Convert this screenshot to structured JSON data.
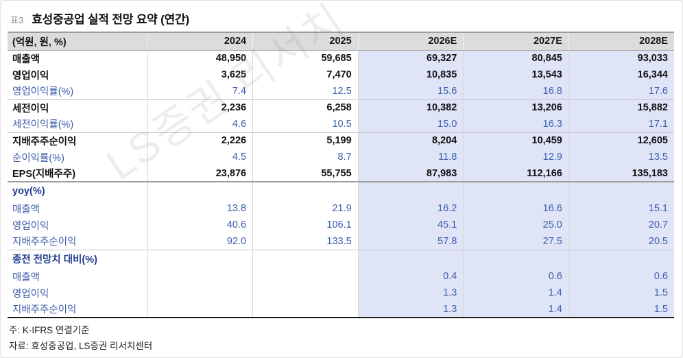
{
  "page": {
    "table_tag": "표3",
    "title": "효성중공업 실적 전망 요약 (연간)",
    "watermark": "LS증권 리서치",
    "notes": [
      "주: K-IFRS 연결기준",
      "자료: 효성중공업, LS증권 리서치센터"
    ]
  },
  "colors": {
    "header_bg": "#dcdcdc",
    "estimate_bg": "#dfe5f7",
    "blue_text": "#3d5caa",
    "section_text": "#1f3d8f"
  },
  "table": {
    "unit_header": "(억원, 원, %)",
    "columns": [
      "2024",
      "2025",
      "2026E",
      "2027E",
      "2028E"
    ],
    "estimate_start": 2,
    "rows": [
      {
        "label": "매출액",
        "style": "bold",
        "values": [
          "48,950",
          "59,685",
          "69,327",
          "80,845",
          "93,033"
        ]
      },
      {
        "label": "영업이익",
        "style": "bold",
        "values": [
          "3,625",
          "7,470",
          "10,835",
          "13,543",
          "16,344"
        ]
      },
      {
        "label": "영업이익률(%)",
        "style": "ratio",
        "values": [
          "7.4",
          "12.5",
          "15.6",
          "16.8",
          "17.6"
        ]
      },
      {
        "label": "세전이익",
        "style": "bold",
        "border": "thin",
        "values": [
          "2,236",
          "6,258",
          "10,382",
          "13,206",
          "15,882"
        ]
      },
      {
        "label": "세전이익률(%)",
        "style": "ratio",
        "values": [
          "4.6",
          "10.5",
          "15.0",
          "16.3",
          "17.1"
        ]
      },
      {
        "label": "지배주주순이익",
        "style": "bold",
        "border": "thin",
        "values": [
          "2,226",
          "5,199",
          "8,204",
          "10,459",
          "12,605"
        ]
      },
      {
        "label": "순이익률(%)",
        "style": "ratio",
        "values": [
          "4.5",
          "8.7",
          "11.8",
          "12.9",
          "13.5"
        ]
      },
      {
        "label": "EPS(지배주주)",
        "style": "bold",
        "values": [
          "23,876",
          "55,755",
          "87,983",
          "112,166",
          "135,183"
        ]
      },
      {
        "label": "yoy(%)",
        "style": "section",
        "border": "strong",
        "values": [
          "",
          "",
          "",
          "",
          ""
        ]
      },
      {
        "label": "매출액",
        "style": "ratio",
        "values": [
          "13.8",
          "21.9",
          "16.2",
          "16.6",
          "15.1"
        ]
      },
      {
        "label": "영업이익",
        "style": "ratio",
        "values": [
          "40.6",
          "106.1",
          "45.1",
          "25.0",
          "20.7"
        ]
      },
      {
        "label": "지배주주순이익",
        "style": "ratio",
        "values": [
          "92.0",
          "133.5",
          "57.8",
          "27.5",
          "20.5"
        ]
      },
      {
        "label": "종전 전망치 대비(%)",
        "style": "section",
        "border": "thin",
        "values": [
          "",
          "",
          "",
          "",
          ""
        ]
      },
      {
        "label": "매출액",
        "style": "ratio",
        "values": [
          "",
          "",
          "0.4",
          "0.6",
          "0.6"
        ]
      },
      {
        "label": "영업이익",
        "style": "ratio",
        "values": [
          "",
          "",
          "1.3",
          "1.4",
          "1.5"
        ]
      },
      {
        "label": "지배주주순이익",
        "style": "ratio",
        "values": [
          "",
          "",
          "1.3",
          "1.4",
          "1.5"
        ]
      }
    ]
  }
}
